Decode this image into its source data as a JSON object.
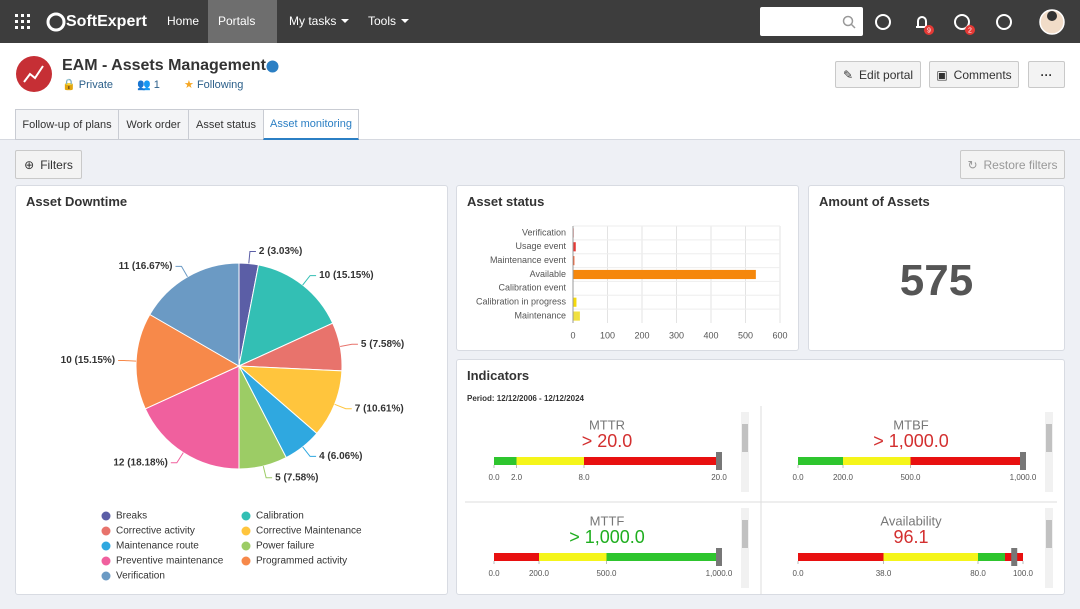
{
  "header": {
    "brand": "SoftExpert",
    "nav": [
      "Home",
      "Portals",
      "My tasks",
      "Tools"
    ],
    "badges": [
      9,
      2
    ]
  },
  "portal": {
    "title": "EAM - Assets Management",
    "privacy": "Private",
    "members": 1,
    "follow": "Following",
    "buttons": [
      "Edit portal",
      "Comments"
    ]
  },
  "tabs": [
    "Follow-up of plans",
    "Work order",
    "Asset status",
    "Asset monitoring"
  ],
  "filters": "Filters",
  "restore": "Restore filters",
  "chart_data": [
    {
      "type": "pie",
      "title": "Asset Downtime",
      "categories": [
        "Breaks",
        "Calibration",
        "Corrective activity",
        "Corrective Maintenance",
        "Maintenance route",
        "Power failure",
        "Preventive maintenance",
        "Programmed activity",
        "Verification"
      ],
      "values": [
        2,
        10,
        5,
        7,
        4,
        5,
        12,
        10,
        11
      ],
      "value_labels": [
        "2 (3.03%)",
        "10 (15.15%)",
        "5 (7.58%)",
        "7 (10.61%)",
        "4 (6.06%)",
        "5 (7.58%)",
        "12 (18.18%)",
        "10 (15.15%)",
        "11 (16.67%)"
      ],
      "colors": [
        "#5b5ea6",
        "#33bfb4",
        "#e8736c",
        "#ffc53d",
        "#2fa8e0",
        "#9ccc65",
        "#f0609e",
        "#f7894a",
        "#6b9ac4"
      ]
    },
    {
      "type": "bar",
      "orientation": "horizontal",
      "title": "Asset status",
      "categories": [
        "Verification",
        "Usage event",
        "Maintenance event",
        "Available",
        "Calibration event",
        "Calibration in progress",
        "Maintenance"
      ],
      "values": [
        2,
        8,
        4,
        530,
        1,
        10,
        20
      ],
      "colors": [
        "#e53935",
        "#e53935",
        "#f4511e",
        "#f5870b",
        "#f7a600",
        "#f5d90a",
        "#f0e040"
      ],
      "xlim": [
        0,
        600
      ],
      "xticks": [
        0,
        100,
        200,
        300,
        400,
        500,
        600
      ],
      "grid": true
    }
  ],
  "amount": {
    "title": "Amount of Assets",
    "value": 575
  },
  "indicators": {
    "title": "Indicators",
    "period_label": "Period:",
    "period": "12/12/2006 - 12/12/2024",
    "gauges": [
      {
        "name": "MTTR",
        "value": 20,
        "value_label": "> 20.0",
        "value_color": "#d32f2f",
        "range": [
          0,
          20
        ],
        "ticks": [
          {
            "value": 0,
            "label": "0.0"
          },
          {
            "value": 2,
            "label": "2.0"
          },
          {
            "value": 8,
            "label": "8.0"
          },
          {
            "value": 20,
            "label": "20.0"
          }
        ],
        "bands": [
          {
            "from": 0,
            "to": 2,
            "color": "#2ec52e"
          },
          {
            "from": 2,
            "to": 8,
            "color": "#f5f51a"
          },
          {
            "from": 8,
            "to": 20,
            "color": "#e81010"
          }
        ]
      },
      {
        "name": "MTBF",
        "value": 1000,
        "value_label": "> 1,000.0",
        "value_color": "#d32f2f",
        "range": [
          0,
          1000
        ],
        "ticks": [
          {
            "value": 0,
            "label": "0.0"
          },
          {
            "value": 200,
            "label": "200.0"
          },
          {
            "value": 500,
            "label": "500.0"
          },
          {
            "value": 1000,
            "label": "1,000.0"
          }
        ],
        "bands": [
          {
            "from": 0,
            "to": 200,
            "color": "#2ec52e"
          },
          {
            "from": 200,
            "to": 500,
            "color": "#f5f51a"
          },
          {
            "from": 500,
            "to": 1000,
            "color": "#e81010"
          }
        ]
      },
      {
        "name": "MTTF",
        "value": 1000,
        "value_label": "> 1,000.0",
        "value_color": "#1fae1f",
        "range": [
          0,
          1000
        ],
        "ticks": [
          {
            "value": 0,
            "label": "0.0"
          },
          {
            "value": 200,
            "label": "200.0"
          },
          {
            "value": 500,
            "label": "500.0"
          },
          {
            "value": 1000,
            "label": "1,000.0"
          }
        ],
        "bands": [
          {
            "from": 0,
            "to": 200,
            "color": "#e81010"
          },
          {
            "from": 200,
            "to": 500,
            "color": "#f5f51a"
          },
          {
            "from": 500,
            "to": 1000,
            "color": "#2ec52e"
          }
        ]
      },
      {
        "name": "Availability",
        "value": 96.1,
        "value_label": "96.1",
        "value_color": "#d32f2f",
        "range": [
          0,
          100
        ],
        "ticks": [
          {
            "value": 0,
            "label": "0.0"
          },
          {
            "value": 38,
            "label": "38.0"
          },
          {
            "value": 80,
            "label": "80.0"
          },
          {
            "value": 100,
            "label": "100.0"
          }
        ],
        "bands": [
          {
            "from": 0,
            "to": 38,
            "color": "#e81010"
          },
          {
            "from": 38,
            "to": 80,
            "color": "#f5f51a"
          },
          {
            "from": 80,
            "to": 92,
            "color": "#2ec52e"
          },
          {
            "from": 92,
            "to": 100,
            "color": "#e81010"
          }
        ]
      }
    ]
  }
}
